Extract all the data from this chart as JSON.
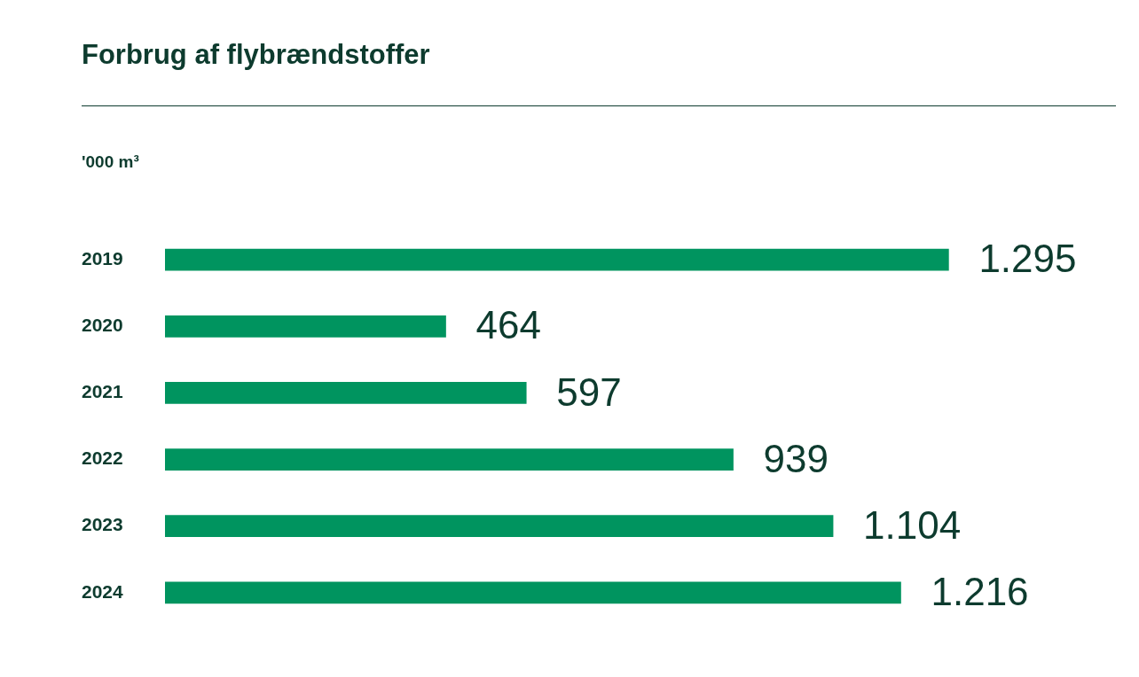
{
  "chart_data": {
    "type": "bar",
    "orientation": "horizontal",
    "title": "Forbrug af flybrændstoffer",
    "subtitle": "'000 m³",
    "categories": [
      "2019",
      "2020",
      "2021",
      "2022",
      "2023",
      "2024"
    ],
    "values": [
      1295,
      464,
      597,
      939,
      1104,
      1216
    ],
    "value_labels": [
      "1.295",
      "464",
      "597",
      "939",
      "1.104",
      "1.216"
    ],
    "color": "#00945f",
    "tick_labels": "y",
    "legend": false
  }
}
